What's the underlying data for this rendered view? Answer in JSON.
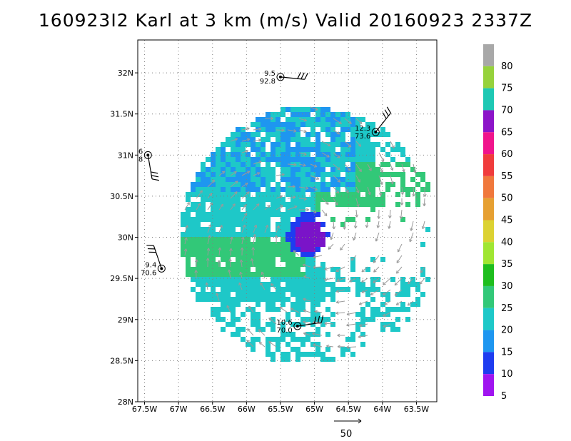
{
  "title": "160923I2 Karl at 3 km (m/s) Valid 20160923 2337Z",
  "map": {
    "lat_labels": [
      "32N",
      "31.5N",
      "31N",
      "30.5N",
      "30N",
      "29.5N",
      "29N",
      "28.5N",
      "28N"
    ],
    "lat_values": [
      32,
      31.5,
      31,
      30.5,
      30,
      29.5,
      29,
      28.5,
      28
    ],
    "lon_labels": [
      "67.5W",
      "67W",
      "66.5W",
      "66W",
      "65.5W",
      "65W",
      "64.5W",
      "64W",
      "63.5W"
    ],
    "lon_values": [
      -67.5,
      -67,
      -66.5,
      -66,
      -65.5,
      -65,
      -64.5,
      -64,
      -63.5
    ],
    "lat_range": [
      28,
      32.4
    ],
    "lon_range": [
      -67.6,
      -63.2
    ],
    "grid": true,
    "storm_center": {
      "lat": 30.05,
      "lon": -65.1
    },
    "data_region_radius_deg": 1.9
  },
  "stations": [
    {
      "id": "s1",
      "lat": 31.95,
      "lon": -65.5,
      "top": "9.5",
      "bottom": "92.8"
    },
    {
      "id": "s2",
      "lat": 31.28,
      "lon": -64.1,
      "top": "12.3",
      "bottom": "73.6"
    },
    {
      "id": "s3",
      "lat": 31.0,
      "lon": -67.45,
      "top": "6",
      "bottom": "8"
    },
    {
      "id": "s4",
      "lat": 29.62,
      "lon": -67.25,
      "top": "9.4",
      "bottom": "70.6"
    },
    {
      "id": "s5",
      "lat": 28.92,
      "lon": -65.25,
      "top": "10.6",
      "bottom": "70.0"
    }
  ],
  "colorbar": {
    "labels": [
      "80",
      "75",
      "70",
      "65",
      "60",
      "55",
      "50",
      "45",
      "40",
      "35",
      "30",
      "25",
      "20",
      "15",
      "10",
      "5"
    ],
    "colors": [
      "#a8a8a8",
      "#96d23c",
      "#1ec8b4",
      "#8c14c8",
      "#f0148c",
      "#f03c3c",
      "#f0783c",
      "#e6a032",
      "#dcd232",
      "#a0e632",
      "#1ebe1e",
      "#32c878",
      "#1ec8c8",
      "#1e96f0",
      "#1e3cf0",
      "#a014f0"
    ]
  },
  "vector_key": {
    "label": "50"
  }
}
